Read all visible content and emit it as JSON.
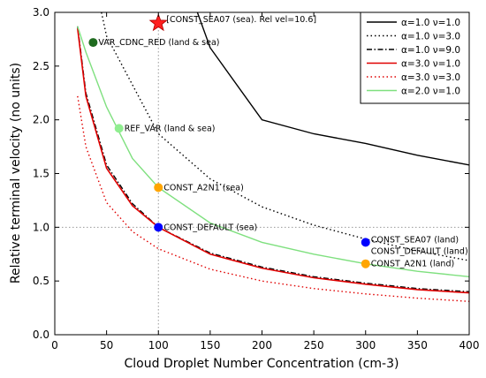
{
  "chart_data": {
    "type": "line",
    "xlabel": "Cloud Droplet Number Concentration (cm-3)",
    "ylabel": "Relative terminal velocity (no units)",
    "xlim": [
      0,
      400
    ],
    "ylim": [
      0,
      3.0
    ],
    "x_ticks": [
      "0",
      "50",
      "100",
      "150",
      "200",
      "250",
      "300",
      "350",
      "400"
    ],
    "y_ticks": [
      "0.0",
      "0.5",
      "1.0",
      "1.5",
      "2.0",
      "2.5",
      "3.0"
    ],
    "legend_position": "top-right",
    "reference_lines": {
      "x": 100,
      "y": 1.0
    },
    "series": [
      {
        "name": "α=1.0 ν=1.0",
        "color": "#000000",
        "style": "solid",
        "x": [
          100,
          150,
          200,
          250,
          300,
          350,
          400
        ],
        "y": [
          4.0,
          2.67,
          2.0,
          1.87,
          1.78,
          1.67,
          1.58
        ]
      },
      {
        "name": "α=1.0 ν=3.0",
        "color": "#000000",
        "style": "dotted",
        "x": [
          45,
          50,
          100,
          150,
          200,
          250,
          300,
          350,
          400
        ],
        "y": [
          3.0,
          2.78,
          1.87,
          1.45,
          1.19,
          1.02,
          0.89,
          0.78,
          0.69
        ]
      },
      {
        "name": "α=1.0 ν=9.0",
        "color": "#000000",
        "style": "dashdot",
        "x": [
          22,
          30,
          50,
          75,
          100,
          150,
          200,
          250,
          300,
          350,
          400
        ],
        "y": [
          2.87,
          2.25,
          1.58,
          1.22,
          1.0,
          0.76,
          0.63,
          0.54,
          0.48,
          0.43,
          0.4
        ]
      },
      {
        "name": "α=3.0 ν=1.0",
        "color": "#e00000",
        "style": "solid",
        "x": [
          22,
          30,
          50,
          75,
          100,
          150,
          200,
          250,
          300,
          350,
          400
        ],
        "y": [
          2.85,
          2.22,
          1.55,
          1.2,
          1.0,
          0.75,
          0.62,
          0.53,
          0.47,
          0.42,
          0.39
        ]
      },
      {
        "name": "α=3.0 ν=3.0",
        "color": "#e00000",
        "style": "dotted",
        "x": [
          22,
          30,
          50,
          75,
          100,
          150,
          200,
          250,
          300,
          350,
          400
        ],
        "y": [
          2.22,
          1.75,
          1.23,
          0.96,
          0.8,
          0.61,
          0.5,
          0.43,
          0.38,
          0.34,
          0.31
        ]
      },
      {
        "name": "α=2.0 ν=1.0",
        "color": "#7fe07f",
        "style": "solid",
        "x": [
          22,
          30,
          50,
          75,
          100,
          150,
          200,
          250,
          300,
          350,
          400
        ],
        "y": [
          2.87,
          2.63,
          2.12,
          1.64,
          1.37,
          1.04,
          0.86,
          0.75,
          0.66,
          0.59,
          0.54
        ]
      }
    ],
    "points": [
      {
        "label": "VAR_CDNC_RED (land & sea)",
        "x": 37,
        "y": 2.72,
        "color": "#1f6b1f",
        "marker": "circle"
      },
      {
        "label": "REF_VAR (land & sea)",
        "x": 62,
        "y": 1.92,
        "color": "#90ee90",
        "marker": "circle"
      },
      {
        "label": "CONST_A2N1 (sea)",
        "x": 100,
        "y": 1.37,
        "color": "#ffa500",
        "marker": "circle"
      },
      {
        "label": "CONST_DEFAULT (sea)",
        "x": 100,
        "y": 1.0,
        "color": "#0000ff",
        "marker": "circle"
      },
      {
        "label": "CONST_SEA07 (land)",
        "x": 300,
        "y": 0.86,
        "color": "#0000ff",
        "marker": "circle"
      },
      {
        "label": "CONST_DEFAULT (land)",
        "x": 300,
        "y": 0.86,
        "color": "#0000ff",
        "marker": "none"
      },
      {
        "label": "CONST_A2N1 (land)",
        "x": 300,
        "y": 0.66,
        "color": "#ffa500",
        "marker": "circle"
      },
      {
        "label": "[CONST_SEA07 (sea). Rel vel=10.6]",
        "x": 100,
        "y": 2.9,
        "color": "#ff2020",
        "marker": "star"
      }
    ]
  }
}
